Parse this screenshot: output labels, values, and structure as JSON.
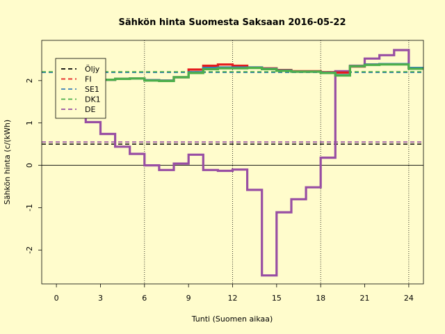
{
  "chart_data": {
    "type": "line",
    "title": "Sähkön hinta Suomesta Saksaan 2016-05-22",
    "xlabel": "Tunti (Suomen aikaa)",
    "ylabel": "Sähkön hinta (c/(kWh)",
    "xlim": [
      -1,
      25
    ],
    "ylim": [
      -2.8,
      2.95
    ],
    "xticks": [
      0,
      3,
      6,
      9,
      12,
      15,
      18,
      21,
      24
    ],
    "yticks": [
      -2,
      -1,
      0,
      1,
      2
    ],
    "vlines": [
      6,
      12,
      18,
      24
    ],
    "hline_zero": 0,
    "legend_position": "upper-left",
    "legend": [
      {
        "name": "Öljy",
        "color": "#000000",
        "level": 0.5
      },
      {
        "name": "FI",
        "color": "#e41a1c",
        "level": 2.19
      },
      {
        "name": "SE1",
        "color": "#377eb8",
        "level": 2.19
      },
      {
        "name": "DK1",
        "color": "#4daf4a",
        "level": 2.21
      },
      {
        "name": "DE",
        "color": "#984ea3",
        "level": 0.55
      }
    ],
    "series": [
      {
        "name": "DE",
        "color": "#984ea3",
        "values": [
          1.9,
          1.55,
          1.02,
          0.74,
          0.44,
          0.27,
          0.0,
          -0.11,
          0.04,
          0.25,
          -0.11,
          -0.13,
          -0.1,
          -0.58,
          -2.6,
          -1.11,
          -0.8,
          -0.52,
          0.18,
          2.22,
          2.35,
          2.52,
          2.6,
          2.72,
          2.3
        ]
      },
      {
        "name": "FI",
        "color": "#e41a1c",
        "values": [
          1.97,
          1.98,
          2.0,
          2.02,
          2.04,
          2.05,
          2.01,
          2.0,
          2.08,
          2.26,
          2.35,
          2.38,
          2.35,
          2.31,
          2.29,
          2.25,
          2.22,
          2.22,
          2.2,
          2.19,
          2.33,
          2.38,
          2.39,
          2.39,
          2.3
        ]
      },
      {
        "name": "SE1",
        "color": "#377eb8",
        "values": [
          1.97,
          1.98,
          2.0,
          2.02,
          2.04,
          2.05,
          2.01,
          2.0,
          2.08,
          2.2,
          2.3,
          2.31,
          2.31,
          2.31,
          2.28,
          2.24,
          2.21,
          2.21,
          2.19,
          2.13,
          2.34,
          2.38,
          2.39,
          2.39,
          2.3
        ]
      },
      {
        "name": "DK1",
        "color": "#4daf4a",
        "values": [
          1.97,
          1.98,
          2.0,
          2.02,
          2.04,
          2.05,
          2.0,
          1.99,
          2.08,
          2.18,
          2.27,
          2.29,
          2.29,
          2.3,
          2.27,
          2.23,
          2.21,
          2.21,
          2.18,
          2.12,
          2.34,
          2.37,
          2.38,
          2.38,
          2.28
        ]
      }
    ]
  }
}
